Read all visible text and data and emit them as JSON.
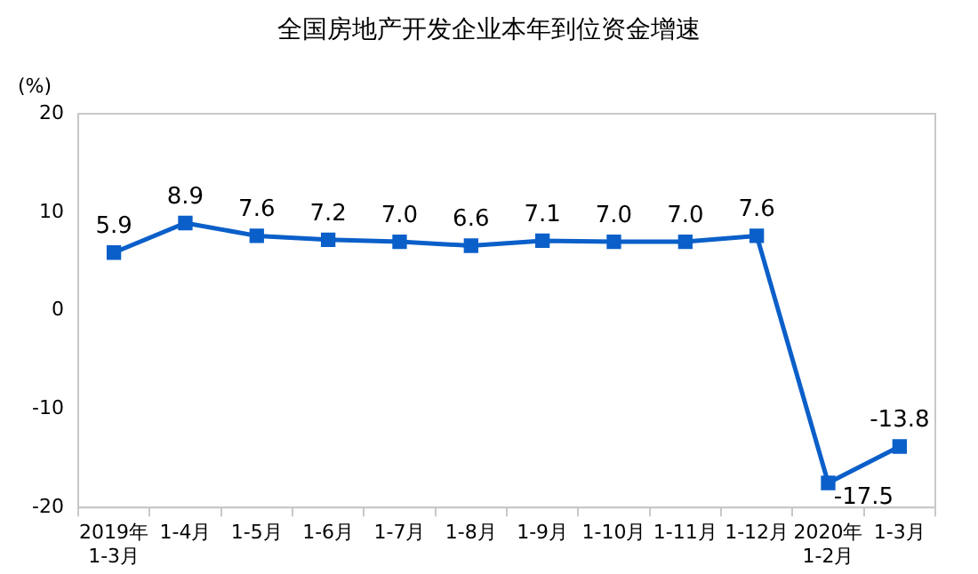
{
  "chart_data": {
    "type": "line",
    "title": "全国房地产开发企业本年到位资金增速",
    "ylabel": "(%)",
    "categories": [
      "2019年\n1-3月",
      "1-4月",
      "1-5月",
      "1-6月",
      "1-7月",
      "1-8月",
      "1-9月",
      "1-10月",
      "1-11月",
      "1-12月",
      "2020年\n1-2月",
      "1-3月"
    ],
    "series": [
      {
        "color": "#0b5fc9",
        "values": [
          5.9,
          8.9,
          7.6,
          7.2,
          7.0,
          6.6,
          7.1,
          7.0,
          7.0,
          7.6,
          -17.5,
          -13.8
        ]
      }
    ],
    "value_labels": [
      "5.9",
      "8.9",
      "7.6",
      "7.2",
      "7.0",
      "6.6",
      "7.1",
      "7.0",
      "7.0",
      "7.6",
      "-17.5",
      "-13.8"
    ],
    "ylim": [
      -20,
      20
    ],
    "yticks": [
      -20,
      -10,
      0,
      10,
      20
    ],
    "grid": false,
    "legend": false,
    "marker": "square",
    "line_style": "solid"
  }
}
